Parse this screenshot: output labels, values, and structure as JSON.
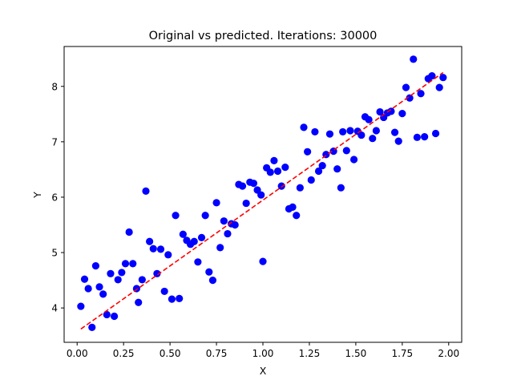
{
  "chart_data": {
    "type": "scatter",
    "title": "Original vs predicted. Iterations: 30000",
    "xlabel": "X",
    "ylabel": "Y",
    "xlim": [
      -0.07,
      2.07
    ],
    "ylim": [
      3.38,
      8.72
    ],
    "xticks": [
      0.0,
      0.25,
      0.5,
      0.75,
      1.0,
      1.25,
      1.5,
      1.75,
      2.0
    ],
    "xtick_labels": [
      "0.00",
      "0.25",
      "0.50",
      "0.75",
      "1.00",
      "1.25",
      "1.50",
      "1.75",
      "2.00"
    ],
    "yticks": [
      4,
      5,
      6,
      7,
      8
    ],
    "ytick_labels": [
      "4",
      "5",
      "6",
      "7",
      "8"
    ],
    "grid": false,
    "series": [
      {
        "kind": "points",
        "color": "#0000ff",
        "points": [
          [
            0.02,
            4.03
          ],
          [
            0.04,
            4.52
          ],
          [
            0.06,
            4.35
          ],
          [
            0.08,
            3.65
          ],
          [
            0.1,
            4.76
          ],
          [
            0.12,
            4.38
          ],
          [
            0.14,
            4.25
          ],
          [
            0.16,
            3.88
          ],
          [
            0.18,
            4.62
          ],
          [
            0.2,
            3.85
          ],
          [
            0.22,
            4.51
          ],
          [
            0.24,
            4.64
          ],
          [
            0.26,
            4.8
          ],
          [
            0.28,
            5.37
          ],
          [
            0.3,
            4.8
          ],
          [
            0.32,
            4.35
          ],
          [
            0.33,
            4.1
          ],
          [
            0.35,
            4.51
          ],
          [
            0.37,
            6.11
          ],
          [
            0.39,
            5.2
          ],
          [
            0.41,
            5.07
          ],
          [
            0.43,
            4.62
          ],
          [
            0.45,
            5.06
          ],
          [
            0.47,
            4.3
          ],
          [
            0.49,
            4.96
          ],
          [
            0.51,
            4.16
          ],
          [
            0.53,
            5.67
          ],
          [
            0.55,
            4.17
          ],
          [
            0.57,
            5.33
          ],
          [
            0.59,
            5.22
          ],
          [
            0.61,
            5.15
          ],
          [
            0.63,
            5.2
          ],
          [
            0.65,
            4.83
          ],
          [
            0.67,
            5.27
          ],
          [
            0.69,
            5.67
          ],
          [
            0.71,
            4.65
          ],
          [
            0.73,
            4.5
          ],
          [
            0.75,
            5.9
          ],
          [
            0.77,
            5.09
          ],
          [
            0.79,
            5.57
          ],
          [
            0.81,
            5.34
          ],
          [
            0.83,
            5.52
          ],
          [
            0.85,
            5.5
          ],
          [
            0.87,
            6.23
          ],
          [
            0.89,
            6.2
          ],
          [
            0.91,
            5.89
          ],
          [
            0.93,
            6.27
          ],
          [
            0.95,
            6.25
          ],
          [
            0.97,
            6.13
          ],
          [
            0.99,
            6.04
          ],
          [
            1.0,
            4.84
          ],
          [
            1.02,
            6.53
          ],
          [
            1.04,
            6.45
          ],
          [
            1.06,
            6.66
          ],
          [
            1.08,
            6.47
          ],
          [
            1.1,
            6.2
          ],
          [
            1.12,
            6.54
          ],
          [
            1.14,
            5.79
          ],
          [
            1.16,
            5.82
          ],
          [
            1.18,
            5.67
          ],
          [
            1.2,
            6.17
          ],
          [
            1.22,
            7.26
          ],
          [
            1.24,
            6.82
          ],
          [
            1.26,
            6.31
          ],
          [
            1.28,
            7.18
          ],
          [
            1.3,
            6.47
          ],
          [
            1.32,
            6.57
          ],
          [
            1.34,
            6.77
          ],
          [
            1.36,
            7.14
          ],
          [
            1.38,
            6.83
          ],
          [
            1.4,
            6.51
          ],
          [
            1.42,
            6.17
          ],
          [
            1.43,
            7.18
          ],
          [
            1.45,
            6.84
          ],
          [
            1.47,
            7.2
          ],
          [
            1.49,
            6.68
          ],
          [
            1.51,
            7.19
          ],
          [
            1.53,
            7.12
          ],
          [
            1.55,
            7.45
          ],
          [
            1.57,
            7.4
          ],
          [
            1.59,
            7.06
          ],
          [
            1.61,
            7.2
          ],
          [
            1.63,
            7.54
          ],
          [
            1.65,
            7.44
          ],
          [
            1.67,
            7.52
          ],
          [
            1.69,
            7.55
          ],
          [
            1.71,
            7.17
          ],
          [
            1.73,
            7.01
          ],
          [
            1.75,
            7.51
          ],
          [
            1.77,
            7.98
          ],
          [
            1.79,
            7.79
          ],
          [
            1.81,
            8.49
          ],
          [
            1.83,
            7.08
          ],
          [
            1.85,
            7.87
          ],
          [
            1.87,
            7.09
          ],
          [
            1.89,
            8.14
          ],
          [
            1.91,
            8.19
          ],
          [
            1.93,
            7.15
          ],
          [
            1.95,
            7.98
          ],
          [
            1.97,
            8.16
          ]
        ]
      },
      {
        "kind": "line",
        "color": "#ff0000",
        "style": "dashed",
        "x": [
          0.02,
          1.97
        ],
        "y": [
          3.62,
          8.25
        ]
      }
    ]
  }
}
